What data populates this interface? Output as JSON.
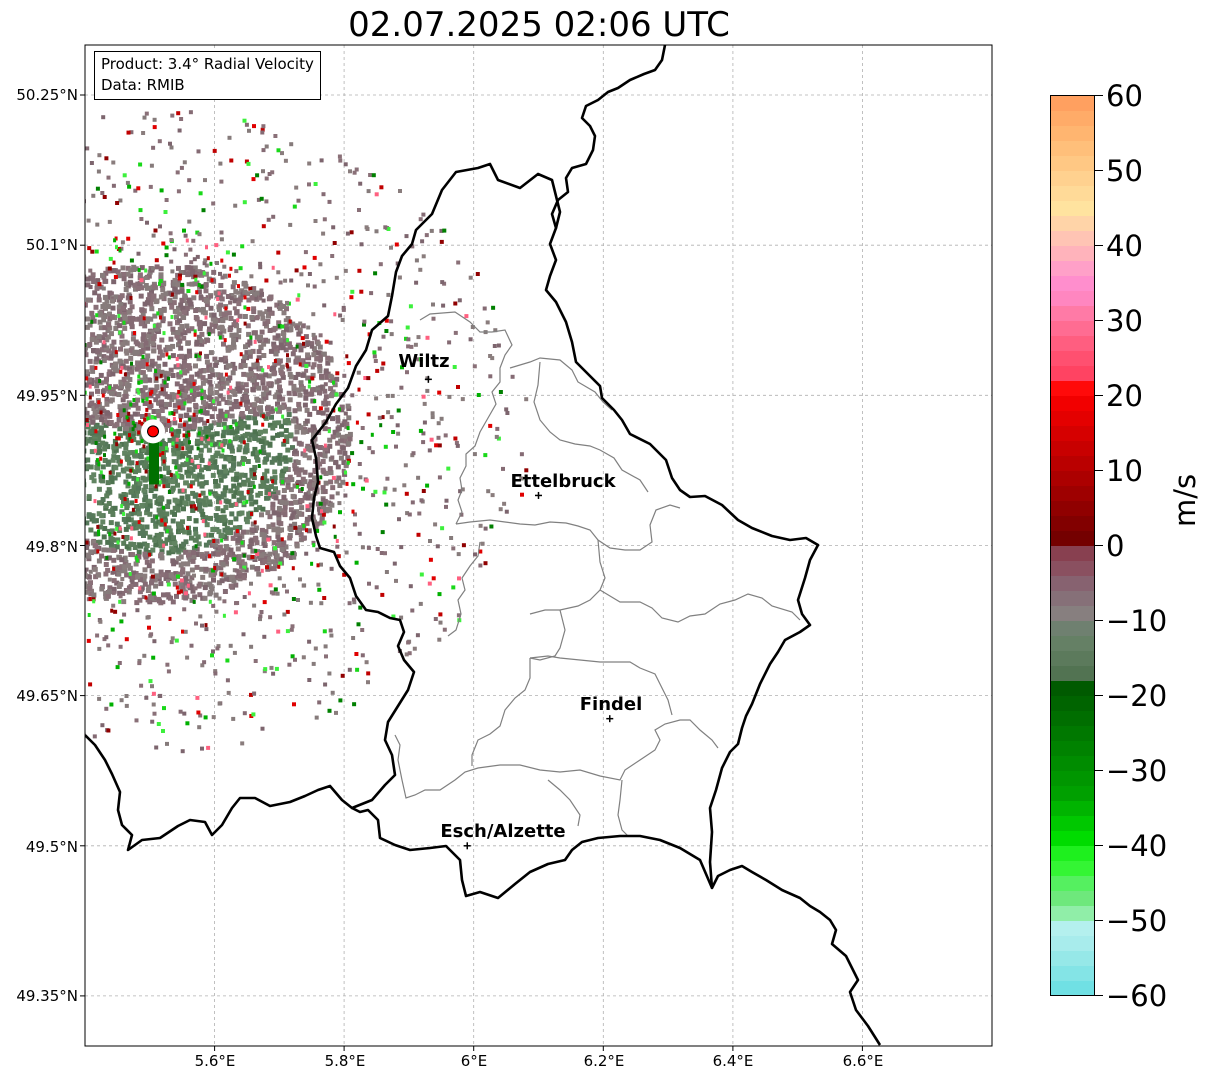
{
  "title": "02.07.2025 02:06 UTC",
  "info": {
    "product": "Product: 3.4° Radial Velocity",
    "data": "Data: RMIB"
  },
  "axes": {
    "lat_labels": [
      "50.25°N",
      "50.1°N",
      "49.95°N",
      "49.8°N",
      "49.65°N",
      "49.5°N",
      "49.35°N"
    ],
    "lon_labels": [
      "5.6°E",
      "5.8°E",
      "6°E",
      "6.2°E",
      "6.4°E",
      "6.6°E"
    ],
    "lat_range": [
      49.3,
      50.3
    ],
    "lon_range": [
      5.4,
      6.8
    ],
    "gridlines": true
  },
  "cities": [
    {
      "name": "Wiltz",
      "lon": 5.93,
      "lat": 49.966
    },
    {
      "name": "Ettelbruck",
      "lon": 6.1,
      "lat": 49.85
    },
    {
      "name": "Findel",
      "lon": 6.21,
      "lat": 49.627
    },
    {
      "name": "Esch/Alzette",
      "lon": 5.99,
      "lat": 49.5
    }
  ],
  "radar": {
    "lon": 5.505,
    "lat": 49.914,
    "marker_color": "#ff0000"
  },
  "colorbar": {
    "unit": "m/s",
    "ticks": [
      "60",
      "50",
      "40",
      "30",
      "20",
      "10",
      "0",
      "−10",
      "−20",
      "−30",
      "−40",
      "−50",
      "−60"
    ],
    "range": [
      -60,
      60
    ]
  },
  "colors": {
    "border": "#000000",
    "cantons": "#808080",
    "grid": "#b0b0b0",
    "ground_green": "#5c7f5c",
    "ground_mauve": "#856b74",
    "ground_grey": "#8a7d7d"
  }
}
